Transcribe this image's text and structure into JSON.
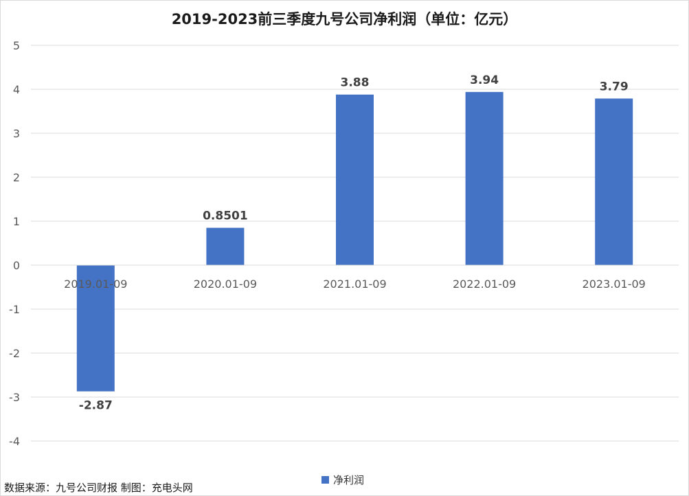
{
  "chart_data": {
    "type": "bar",
    "title": "2019-2023前三季度九号公司净利润（单位：亿元）",
    "categories": [
      "2019.01-09",
      "2020.01-09",
      "2021.01-09",
      "2022.01-09",
      "2023.01-09"
    ],
    "series": [
      {
        "name": "净利润",
        "values": [
          -2.87,
          0.8501,
          3.88,
          3.94,
          3.79
        ],
        "color": "#4472C4"
      }
    ],
    "data_labels": [
      "-2.87",
      "0.8501",
      "3.88",
      "3.94",
      "3.79"
    ],
    "ylim": [
      -4,
      5
    ],
    "yticks": [
      5,
      4,
      3,
      2,
      1,
      0,
      -1,
      -2,
      -3,
      -4
    ],
    "grid": true,
    "legend_position": "bottom"
  },
  "source_note": "数据来源：九号公司财报  制图：充电头网"
}
